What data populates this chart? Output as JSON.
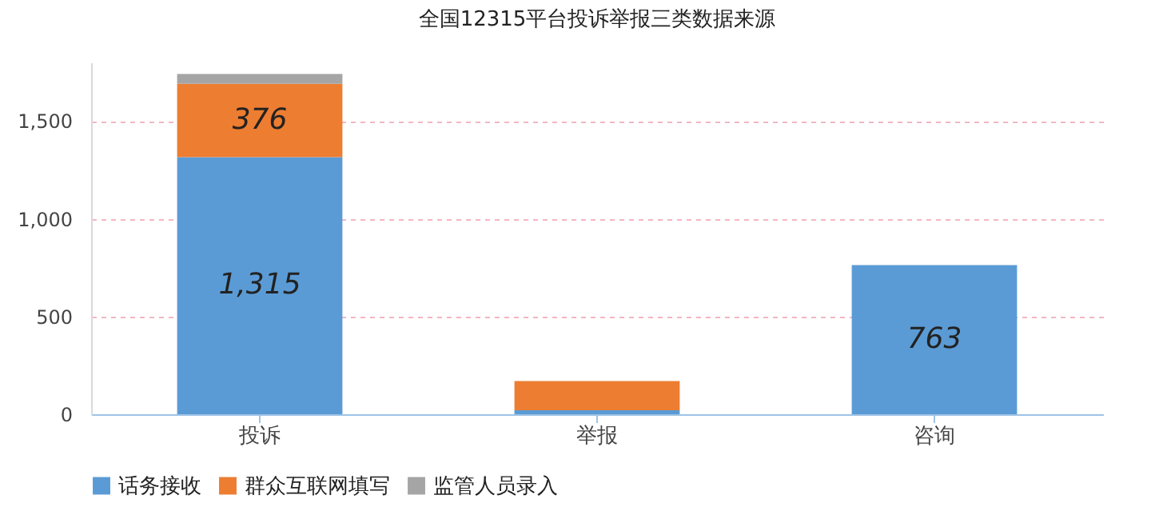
{
  "chart_data": {
    "type": "bar",
    "title": "全国12315平台投诉举报三类数据来源",
    "categories": [
      "投诉",
      "举报",
      "咨询"
    ],
    "stacked": true,
    "series": [
      {
        "name": "话务接收",
        "color": "#5b9bd5",
        "values": [
          1315,
          20,
          763
        ],
        "value_labels": [
          "1,315",
          null,
          "763"
        ]
      },
      {
        "name": "群众互联网填写",
        "color": "#ed7d31",
        "values": [
          376,
          150,
          0
        ],
        "value_labels": [
          "376",
          null,
          null
        ]
      },
      {
        "name": "监管人员录入",
        "color": "#a5a5a5",
        "values": [
          50,
          0,
          0
        ]
      }
    ],
    "ylim": [
      0,
      1800
    ],
    "yticks": [
      0,
      500,
      {
        "value": 1000,
        "label": "1,000"
      },
      {
        "value": 1500,
        "label": "1,500"
      }
    ],
    "grid": "y",
    "legend": "bottom"
  }
}
